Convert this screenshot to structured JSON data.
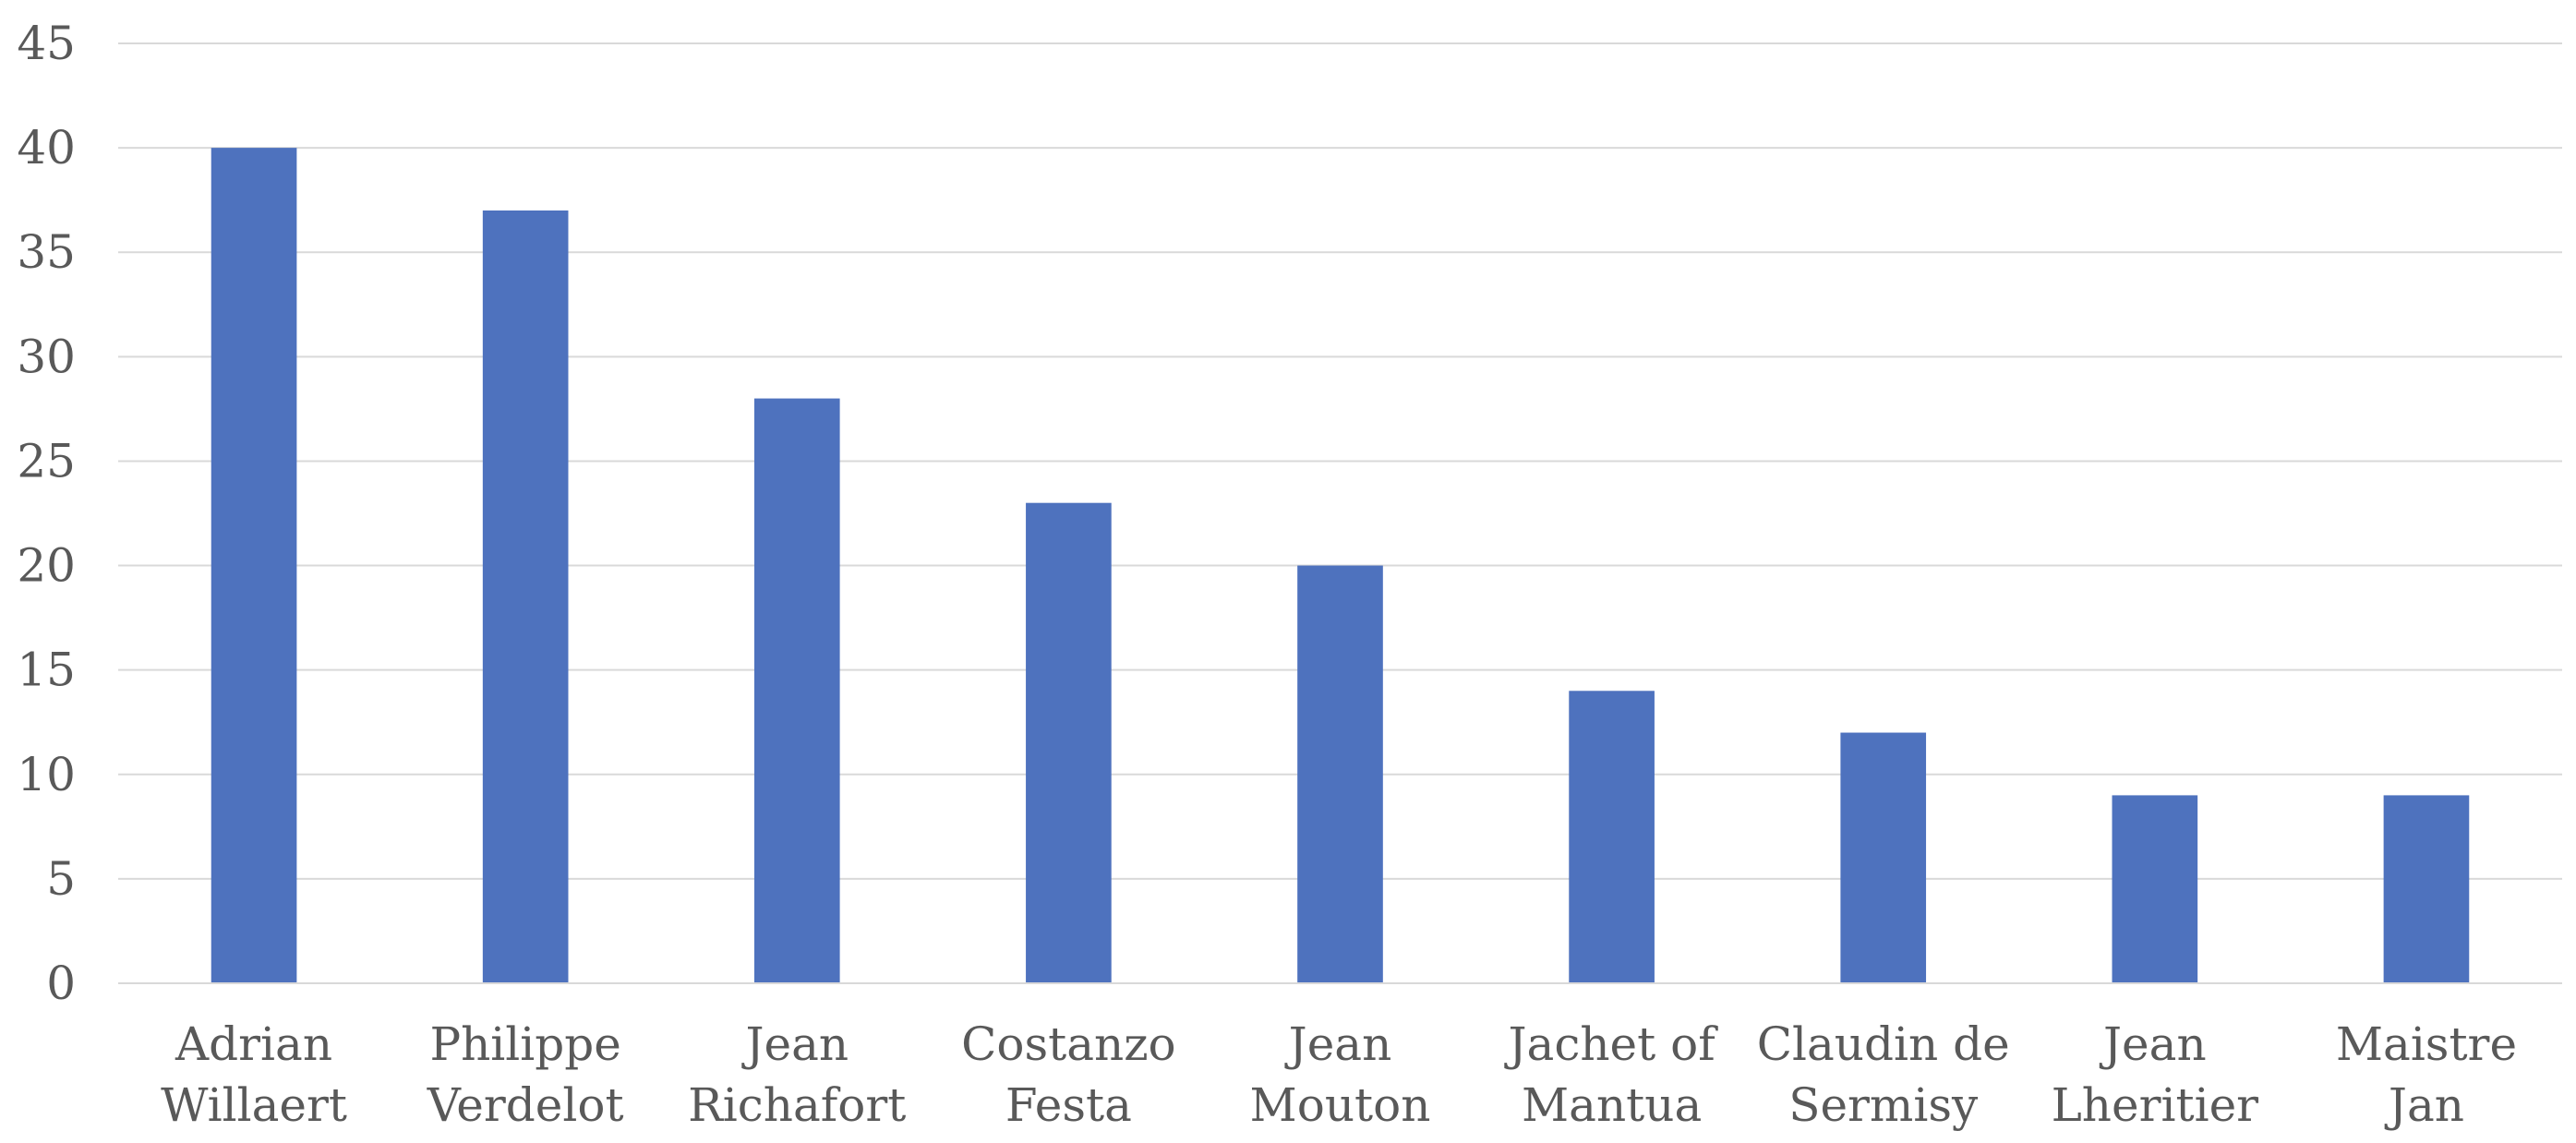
{
  "chart_data": {
    "type": "bar",
    "title": "",
    "xlabel": "",
    "ylabel": "",
    "categories": [
      [
        "Adrian",
        "Willaert"
      ],
      [
        "Philippe",
        "Verdelot"
      ],
      [
        "Jean",
        "Richafort"
      ],
      [
        "Costanzo",
        "Festa"
      ],
      [
        "Jean",
        "Mouton"
      ],
      [
        "Jachet of",
        "Mantua"
      ],
      [
        "Claudin de",
        "Sermisy"
      ],
      [
        "Jean",
        "Lheritier"
      ],
      [
        "Maistre",
        "Jan"
      ]
    ],
    "values": [
      40,
      37,
      28,
      23,
      20,
      14,
      12,
      9,
      9
    ],
    "ylim": [
      0,
      45
    ],
    "yticks": [
      0,
      5,
      10,
      15,
      20,
      25,
      30,
      35,
      40,
      45
    ],
    "grid": true,
    "legend": "none",
    "bar_color": "#4e72be",
    "grid_color": "#d9d9d9",
    "label_color": "#595959"
  }
}
